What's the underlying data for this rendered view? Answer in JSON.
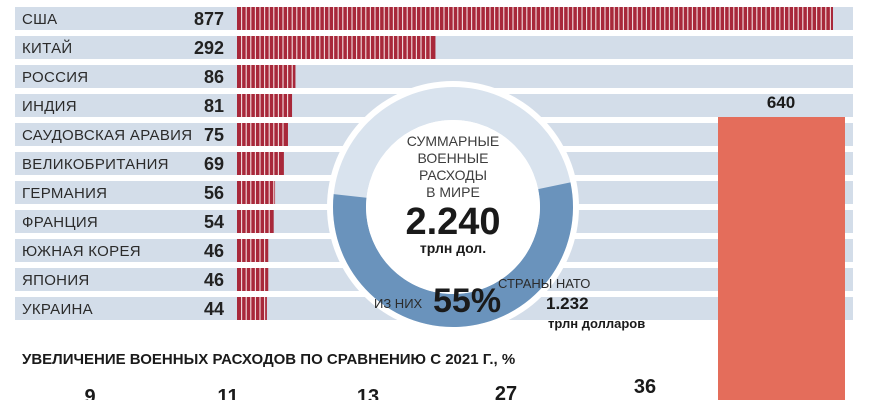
{
  "colors": {
    "bar": "#a8283a",
    "track": "#d3dde9",
    "donut_light": "#d9e3ee",
    "donut_dark": "#6a93bc",
    "big_bar": "#e46d5b"
  },
  "chart_data": [
    {
      "type": "bar",
      "orientation": "horizontal",
      "categories": [
        "США",
        "КИТАЙ",
        "РОССИЯ",
        "ИНДИЯ",
        "САУДОВСКАЯ АРАВИЯ",
        "ВЕЛИКОБРИТАНИЯ",
        "ГЕРМАНИЯ",
        "ФРАНЦИЯ",
        "ЮЖНАЯ КОРЕЯ",
        "ЯПОНИЯ",
        "УКРАИНА"
      ],
      "values": [
        877,
        292,
        86,
        81,
        75,
        69,
        56,
        54,
        46,
        46,
        44
      ],
      "xlim": [
        0,
        877
      ]
    },
    {
      "type": "pie",
      "labels": [
        "СУММАРНЫЕ",
        "ВОЕННЫЕ",
        "РАСХОДЫ",
        "В МИРЕ"
      ],
      "total": "2.240",
      "total_unit": "трлн дол.",
      "nato_prefix": "ИЗ НИХ",
      "nato_share": 55,
      "nato_share_label": "55%",
      "nato_label": "СТРАНЫ НАТО",
      "nato_amount": "1.232",
      "nato_amount_unit": "трлн долларов"
    },
    {
      "type": "bar",
      "value": 640,
      "value_label": "640"
    },
    {
      "type": "bar",
      "title": "УВЕЛИЧЕНИЕ ВОЕННЫХ РАСХОДОВ ПО СРАВНЕНИЮ С 2021 Г., %",
      "values": [
        9,
        11,
        13,
        27,
        36
      ],
      "value_labels": [
        "9",
        "11",
        "13",
        "27",
        "36"
      ]
    }
  ]
}
